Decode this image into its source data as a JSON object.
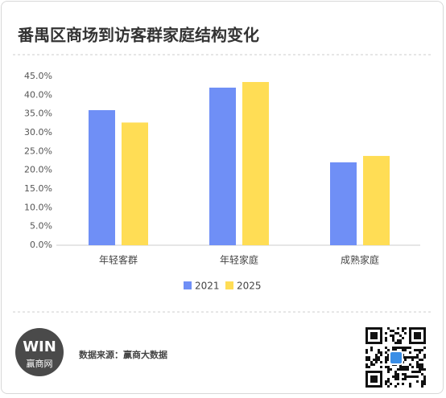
{
  "chart_data": {
    "type": "bar",
    "title": "番禺区商场到访客群家庭结构变化",
    "categories": [
      "年轻客群",
      "年轻家庭",
      "成熟家庭"
    ],
    "series": [
      {
        "name": "2021",
        "color": "#6f8ff6",
        "values": [
          36.0,
          42.0,
          22.1
        ]
      },
      {
        "name": "2025",
        "color": "#ffdd55",
        "values": [
          32.7,
          43.5,
          23.8
        ]
      }
    ],
    "ylim": [
      0,
      45
    ],
    "yticks": [
      {
        "value": 0,
        "label": "0.0%"
      },
      {
        "value": 5,
        "label": "5.0%"
      },
      {
        "value": 10,
        "label": "10.0%"
      },
      {
        "value": 15,
        "label": "15.0%"
      },
      {
        "value": 20,
        "label": "20.0%"
      },
      {
        "value": 25,
        "label": "25.0%"
      },
      {
        "value": 30,
        "label": "30.0%"
      },
      {
        "value": 35,
        "label": "35.0%"
      },
      {
        "value": 40,
        "label": "40.0%"
      },
      {
        "value": 45,
        "label": "45.0%"
      }
    ],
    "grid": false,
    "legend": "bottom"
  },
  "footer": {
    "logo_mark": "WIN",
    "logo_name": "赢商网",
    "source": "数据来源：赢商大数据"
  }
}
